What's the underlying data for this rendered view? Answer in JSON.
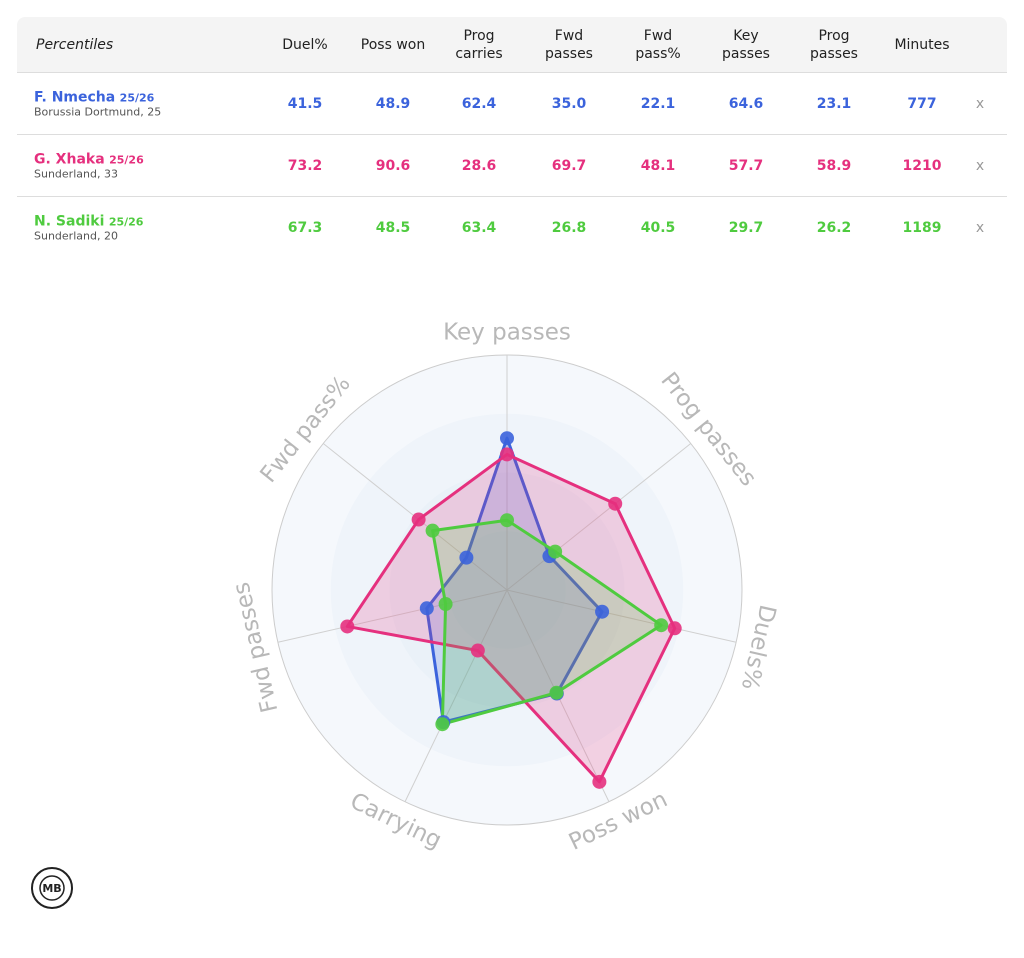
{
  "table": {
    "header": {
      "title": "Percentiles",
      "columns": [
        [
          "Duel%"
        ],
        [
          "Poss won"
        ],
        [
          "Prog",
          "carries"
        ],
        [
          "Fwd",
          "passes"
        ],
        [
          "Fwd",
          "pass%"
        ],
        [
          "Key",
          "passes"
        ],
        [
          "Prog",
          "passes"
        ],
        [
          "Minutes"
        ]
      ]
    },
    "rows": [
      {
        "name": "F. Nmecha",
        "season": "25/26",
        "team": "Borussia Dortmund, 25",
        "color": "#3b63dc",
        "values": [
          "41.5",
          "48.9",
          "62.4",
          "35.0",
          "22.1",
          "64.6",
          "23.1",
          "777"
        ],
        "remove": "x"
      },
      {
        "name": "G. Xhaka",
        "season": "25/26",
        "team": "Sunderland, 33",
        "color": "#e5307e",
        "values": [
          "73.2",
          "90.6",
          "28.6",
          "69.7",
          "48.1",
          "57.7",
          "58.9",
          "1210"
        ],
        "remove": "x"
      },
      {
        "name": "N. Sadiki",
        "season": "25/26",
        "team": "Sunderland, 20",
        "color": "#4fcb3f",
        "values": [
          "67.3",
          "48.5",
          "63.4",
          "26.8",
          "40.5",
          "29.7",
          "26.2",
          "1189"
        ],
        "remove": "x"
      }
    ]
  },
  "chart_data": {
    "type": "radar",
    "categories": [
      "Key passes",
      "Prog passes",
      "Duels%",
      "Poss won",
      "Carrying",
      "Fwd passes",
      "Fwd pass%"
    ],
    "ylim": [
      0,
      100
    ],
    "yticks": [
      25,
      50,
      75,
      100
    ],
    "series": [
      {
        "color": "#3b63dc",
        "values": [
          64.6,
          23.1,
          41.5,
          48.9,
          62.4,
          35.0,
          22.1
        ]
      },
      {
        "color": "#e5307e",
        "values": [
          57.7,
          58.9,
          73.2,
          90.6,
          28.6,
          69.7,
          48.1
        ]
      },
      {
        "color": "#4fcb3f",
        "values": [
          29.7,
          26.2,
          67.3,
          48.5,
          63.4,
          26.8,
          40.5
        ]
      }
    ]
  },
  "logo": "MB"
}
